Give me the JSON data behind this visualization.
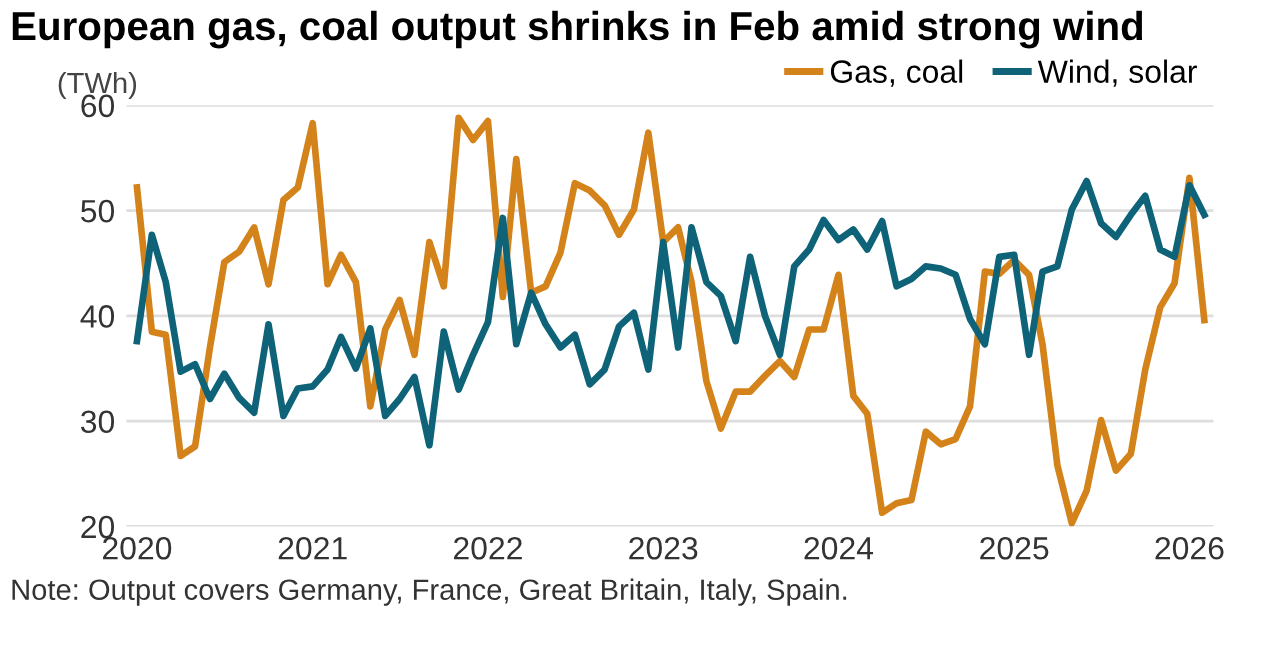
{
  "chart_data": {
    "type": "line",
    "title": "European gas, coal output shrinks in Feb amid strong wind",
    "ylabel": "(TWh)",
    "x": [
      "2020-01",
      "2020-02",
      "2020-03",
      "2020-04",
      "2020-05",
      "2020-06",
      "2020-07",
      "2020-08",
      "2020-09",
      "2020-10",
      "2020-11",
      "2020-12",
      "2021-01",
      "2021-02",
      "2021-03",
      "2021-04",
      "2021-05",
      "2021-06",
      "2021-07",
      "2021-08",
      "2021-09",
      "2021-10",
      "2021-11",
      "2021-12",
      "2022-01",
      "2022-02",
      "2022-03",
      "2022-04",
      "2022-05",
      "2022-06",
      "2022-07",
      "2022-08",
      "2022-09",
      "2022-10",
      "2022-11",
      "2022-12",
      "2023-01",
      "2023-02",
      "2023-03",
      "2023-04",
      "2023-05",
      "2023-06",
      "2023-07",
      "2023-08",
      "2023-09",
      "2023-10",
      "2023-11",
      "2023-12",
      "2024-01",
      "2024-02",
      "2024-03",
      "2024-04",
      "2024-05",
      "2024-06",
      "2024-07",
      "2024-08",
      "2024-09",
      "2024-10",
      "2024-11",
      "2024-12",
      "2025-01",
      "2025-02",
      "2025-03",
      "2025-04",
      "2025-05",
      "2025-06",
      "2025-07",
      "2025-08",
      "2025-09",
      "2025-10",
      "2025-11",
      "2025-12",
      "2026-01",
      "2026-02"
    ],
    "series": [
      {
        "name": "Gas, coal",
        "color": "#d4821a",
        "values": [
          52.2,
          38.5,
          38.2,
          26.7,
          27.6,
          37,
          45.1,
          46.1,
          48.4,
          43,
          51,
          52.2,
          58.3,
          43,
          45.8,
          43.2,
          31.4,
          38.7,
          41.5,
          36.3,
          47,
          42.8,
          58.8,
          56.7,
          58.5,
          41.8,
          54.9,
          42.2,
          42.8,
          46,
          52.6,
          51.9,
          50.5,
          47.7,
          50.1,
          57.4,
          47,
          48.4,
          43.2,
          33.8,
          29.3,
          32.8,
          32.8,
          34.3,
          35.7,
          34.2,
          38.7,
          38.7,
          43.9,
          32.4,
          30.7,
          21.3,
          22.2,
          22.5,
          29,
          27.8,
          28.3,
          31.4,
          44.2,
          44,
          45.3,
          43.9,
          37.3,
          25.8,
          20.3,
          23.4,
          30.1,
          25.3,
          26.9,
          34.9,
          40.8,
          43.1,
          53.1,
          39.6
        ]
      },
      {
        "name": "Wind, solar",
        "color": "#0f6378",
        "values": [
          37.6,
          47.7,
          43.2,
          34.7,
          35.4,
          32.1,
          34.5,
          32.2,
          30.8,
          39.2,
          30.5,
          33.1,
          33.3,
          34.9,
          38,
          35,
          38.8,
          30.5,
          32.1,
          34.2,
          27.7,
          38.5,
          33,
          36.3,
          39.4,
          49.3,
          37.3,
          42.2,
          39.2,
          37,
          38.2,
          33.5,
          34.9,
          39,
          40.3,
          34.9,
          47,
          37,
          48.4,
          43.2,
          41.9,
          37.6,
          45.6,
          40,
          36.3,
          44.7,
          46.3,
          49.1,
          47.2,
          48.2,
          46.3,
          49,
          42.8,
          43.5,
          44.7,
          44.5,
          43.9,
          39.7,
          37.3,
          45.6,
          45.8,
          36.3,
          44.2,
          44.7,
          50.1,
          52.8,
          48.8,
          47.5,
          49.6,
          51.4,
          46.3,
          45.6,
          52.4,
          49.6
        ]
      }
    ],
    "xlim": [
      "2019-12-10",
      "2026-02-20"
    ],
    "xticks": [
      {
        "value": "2020-01",
        "label": "2020"
      },
      {
        "value": "2021-01",
        "label": "2021"
      },
      {
        "value": "2022-01",
        "label": "2022"
      },
      {
        "value": "2023-01",
        "label": "2023"
      },
      {
        "value": "2024-01",
        "label": "2024"
      },
      {
        "value": "2025-01",
        "label": "2025"
      },
      {
        "value": "2026-01",
        "label": "2026"
      }
    ],
    "ylim": [
      20,
      60
    ],
    "yticks": [
      20,
      30,
      40,
      50,
      60
    ],
    "grid": "y",
    "legend": "top right",
    "marker": "none",
    "line_style": "solid",
    "annotations": [
      "Note: Output covers Germany, France, Great Britain, Italy, Spain."
    ]
  }
}
